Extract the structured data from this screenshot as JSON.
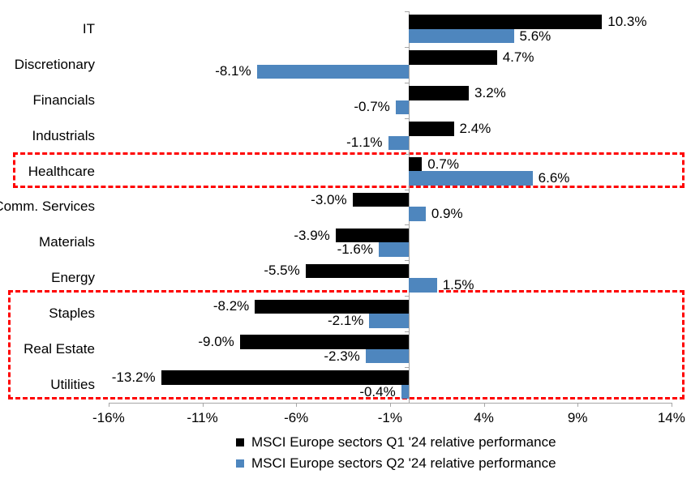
{
  "chart_data": {
    "type": "bar",
    "orientation": "horizontal",
    "title": "",
    "categories": [
      "IT",
      "Discretionary",
      "Financials",
      "Industrials",
      "Healthcare",
      "Comm. Services",
      "Materials",
      "Energy",
      "Staples",
      "Real Estate",
      "Utilities"
    ],
    "series": [
      {
        "name": "MSCI Europe sectors Q1 '24 relative performance",
        "color": "#000000",
        "values": [
          10.3,
          4.7,
          3.2,
          2.4,
          0.7,
          -3.0,
          -3.9,
          -5.5,
          -8.2,
          -9.0,
          -13.2
        ],
        "labels": [
          "10.3%",
          "4.7%",
          "3.2%",
          "2.4%",
          "0.7%",
          "-3.0%",
          "-3.9%",
          "-5.5%",
          "-8.2%",
          "-9.0%",
          "-13.2%"
        ]
      },
      {
        "name": "MSCI Europe sectors Q2 '24 relative performance",
        "color": "#4E86BE",
        "values": [
          5.6,
          -8.1,
          -0.7,
          -1.1,
          6.6,
          0.9,
          -1.6,
          1.5,
          -2.1,
          -2.3,
          -0.4
        ],
        "labels": [
          "5.6%",
          "-8.1%",
          "-0.7%",
          "-1.1%",
          "6.6%",
          "0.9%",
          "-1.6%",
          "1.5%",
          "-2.1%",
          "-2.3%",
          "-0.4%"
        ]
      }
    ],
    "x_ticks": [
      {
        "value": -16,
        "label": "-16%"
      },
      {
        "value": -11,
        "label": "-11%"
      },
      {
        "value": -6,
        "label": "-6%"
      },
      {
        "value": -1,
        "label": "-1%"
      },
      {
        "value": 4,
        "label": "4%"
      },
      {
        "value": 9,
        "label": "9%"
      },
      {
        "value": 14,
        "label": "14%"
      }
    ],
    "xlim": [
      -16,
      14
    ],
    "grid": false,
    "legend_position": "bottom",
    "axis_color": "#A6A6A6",
    "highlight_color": "#FF0000",
    "highlights": [
      {
        "name": "healthcare-highlight",
        "start_category": "Healthcare",
        "end_category": "Healthcare"
      },
      {
        "name": "defensives-highlight",
        "start_category": "Staples",
        "end_category": "Utilities"
      }
    ]
  }
}
